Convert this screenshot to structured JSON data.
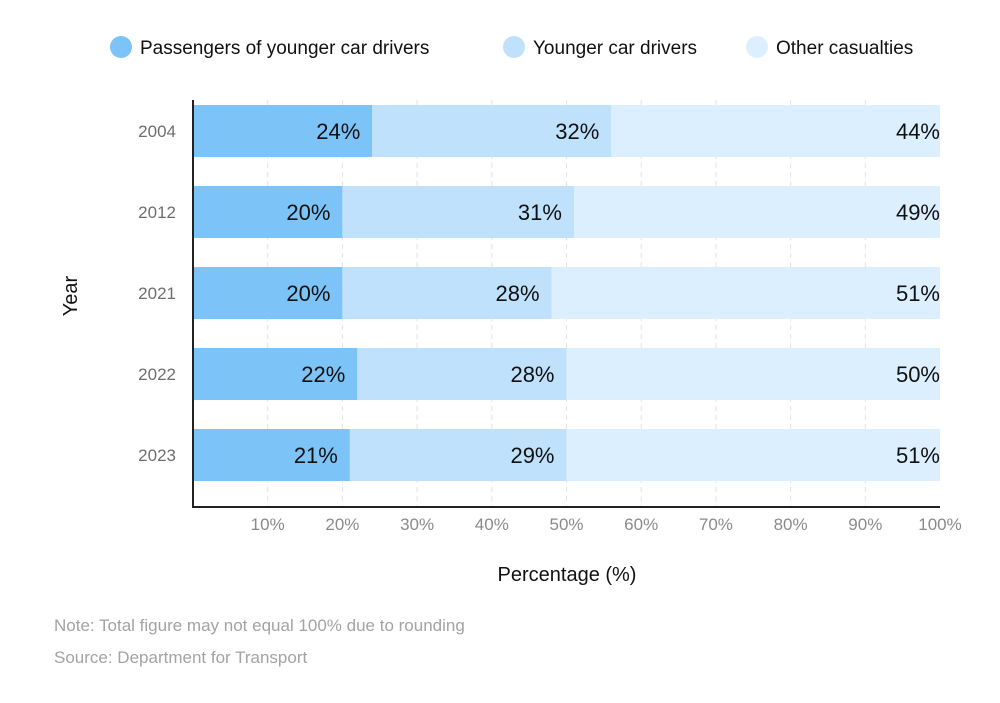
{
  "chart_data": {
    "type": "bar",
    "orientation": "horizontal",
    "stacked": true,
    "categories": [
      "2004",
      "2012",
      "2021",
      "2022",
      "2023"
    ],
    "series": [
      {
        "name": "Passengers of younger car drivers",
        "values": [
          24,
          20,
          20,
          22,
          21
        ],
        "color": "#7cc3f7",
        "labels": [
          "24%",
          "20%",
          "20%",
          "22%",
          "21%"
        ]
      },
      {
        "name": "Younger car drivers",
        "values": [
          32,
          31,
          28,
          28,
          29
        ],
        "color": "#bfe1fb",
        "labels": [
          "32%",
          "31%",
          "28%",
          "28%",
          "29%"
        ]
      },
      {
        "name": "Other casualties",
        "values": [
          44,
          49,
          51,
          50,
          51
        ],
        "color": "#dcefff",
        "labels": [
          "44%",
          "49%",
          "51%",
          "50%",
          "51%"
        ]
      }
    ],
    "xlim": [
      0,
      100
    ],
    "xticks": [
      10,
      20,
      30,
      40,
      50,
      60,
      70,
      80,
      90,
      100
    ],
    "xtick_labels": [
      "10%",
      "20%",
      "30%",
      "40%",
      "50%",
      "60%",
      "70%",
      "80%",
      "90%",
      "100%"
    ],
    "xlabel": "Percentage (%)",
    "ylabel": "Year",
    "legend_position": "top",
    "grid": "vertical dashed"
  },
  "footnotes": {
    "note": "Note: Total figure may not equal 100% due to rounding",
    "source": "Source: Department for Transport"
  }
}
